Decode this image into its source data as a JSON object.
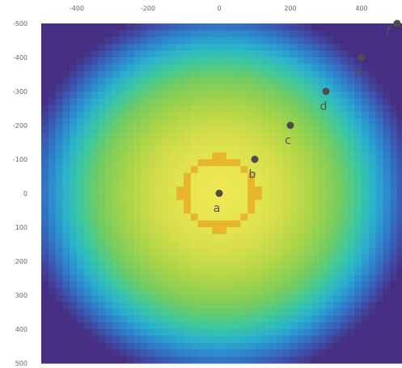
{
  "chart_data": {
    "type": "heatmap",
    "colormap": "viridis-like (dark blue outside, yellow at center)",
    "x_ticks": [
      "-400",
      "-200",
      "0",
      "200",
      "400"
    ],
    "y_ticks": [
      "-500",
      "-400",
      "-300",
      "-200",
      "-100",
      "0",
      "100",
      "200",
      "300",
      "400",
      "500"
    ],
    "xlim": [
      -500,
      500
    ],
    "ylim": [
      -500,
      500
    ],
    "x_axis_position": "top",
    "y_axis_increases": "downward",
    "grid": false,
    "legend": "none",
    "ring": {
      "center": [
        0,
        0
      ],
      "radius": 100,
      "color": "#e8b62a"
    },
    "points": [
      {
        "label": "a",
        "x": 0,
        "y": 0
      },
      {
        "label": "b",
        "x": 100,
        "y": -100
      },
      {
        "label": "c",
        "x": 200,
        "y": -200
      },
      {
        "label": "d",
        "x": 300,
        "y": -300
      },
      {
        "label": "e",
        "x": 400,
        "y": -400
      },
      {
        "label": "f",
        "x": 500,
        "y": -500
      }
    ],
    "point_color": "#4d4d4d"
  }
}
